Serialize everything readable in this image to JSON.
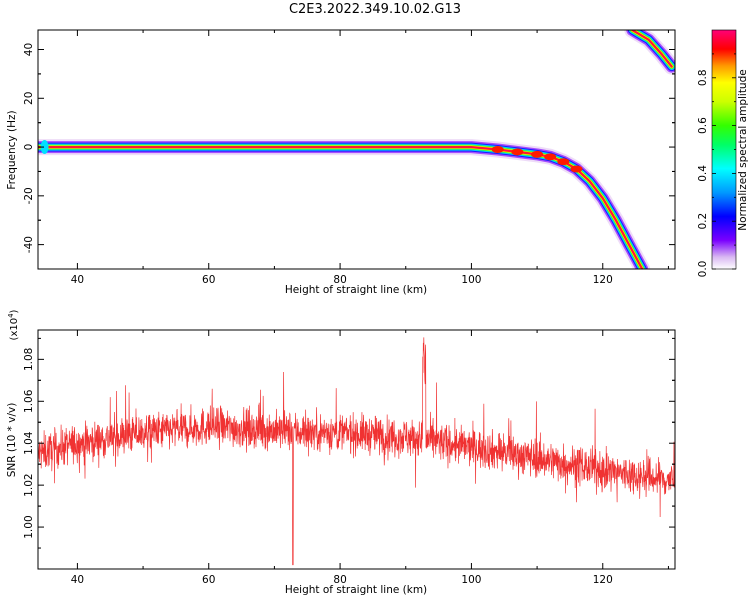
{
  "title": "C2E3.2022.349.10.02.G13",
  "chart_data": [
    {
      "type": "heatmap",
      "xlabel": "Height of straight line (km)",
      "ylabel": "Frequency (Hz)",
      "xlim": [
        34,
        131
      ],
      "ylim": [
        -50,
        48
      ],
      "xticks": [
        "40",
        "60",
        "80",
        "100",
        "120"
      ],
      "xtick_values": [
        40,
        60,
        80,
        100,
        120
      ],
      "yticks": [
        "40",
        "20",
        "0",
        "-20",
        "-40"
      ],
      "ytick_values": [
        40,
        20,
        0,
        -20,
        -40
      ],
      "colorbar": {
        "label": "Normalized spectral amplitude",
        "ticks": [
          "0.0",
          "0.2",
          "0.4",
          "0.6",
          "0.8"
        ],
        "tick_values": [
          0.0,
          0.2,
          0.4,
          0.6,
          0.8
        ],
        "range": [
          0,
          1
        ]
      },
      "ridge_main": [
        [
          34,
          0
        ],
        [
          60,
          0
        ],
        [
          90,
          0
        ],
        [
          100,
          0
        ],
        [
          104,
          -1
        ],
        [
          107,
          -2
        ],
        [
          110,
          -3
        ],
        [
          112,
          -4
        ],
        [
          114,
          -6
        ],
        [
          116,
          -9
        ],
        [
          118,
          -14
        ],
        [
          120,
          -21
        ],
        [
          122,
          -30
        ],
        [
          124,
          -40
        ],
        [
          126,
          -50
        ]
      ],
      "ridge_upper": [
        [
          124.5,
          48
        ],
        [
          127,
          44
        ],
        [
          129,
          38
        ],
        [
          130.5,
          33
        ]
      ]
    },
    {
      "type": "line",
      "xlabel": "Height of straight line (km)",
      "ylabel": "SNR (10 * v/v)",
      "y_multiplier": "(x10",
      "y_multiplier_exp": "4",
      "y_multiplier_close": ")",
      "xlim": [
        34,
        131
      ],
      "ylim": [
        0.98,
        1.094
      ],
      "xticks": [
        "40",
        "60",
        "80",
        "100",
        "120"
      ],
      "xtick_values": [
        40,
        60,
        80,
        100,
        120
      ],
      "yticks": [
        "1.00",
        "1.02",
        "1.04",
        "1.06",
        "1.08"
      ],
      "ytick_values": [
        1.0,
        1.02,
        1.04,
        1.06,
        1.08
      ],
      "color": "#f03232",
      "envelope": [
        [
          34,
          1.035
        ],
        [
          40,
          1.04
        ],
        [
          50,
          1.045
        ],
        [
          60,
          1.048
        ],
        [
          70,
          1.046
        ],
        [
          80,
          1.045
        ],
        [
          90,
          1.043
        ],
        [
          100,
          1.038
        ],
        [
          110,
          1.033
        ],
        [
          120,
          1.027
        ],
        [
          131,
          1.022
        ]
      ]
    }
  ]
}
